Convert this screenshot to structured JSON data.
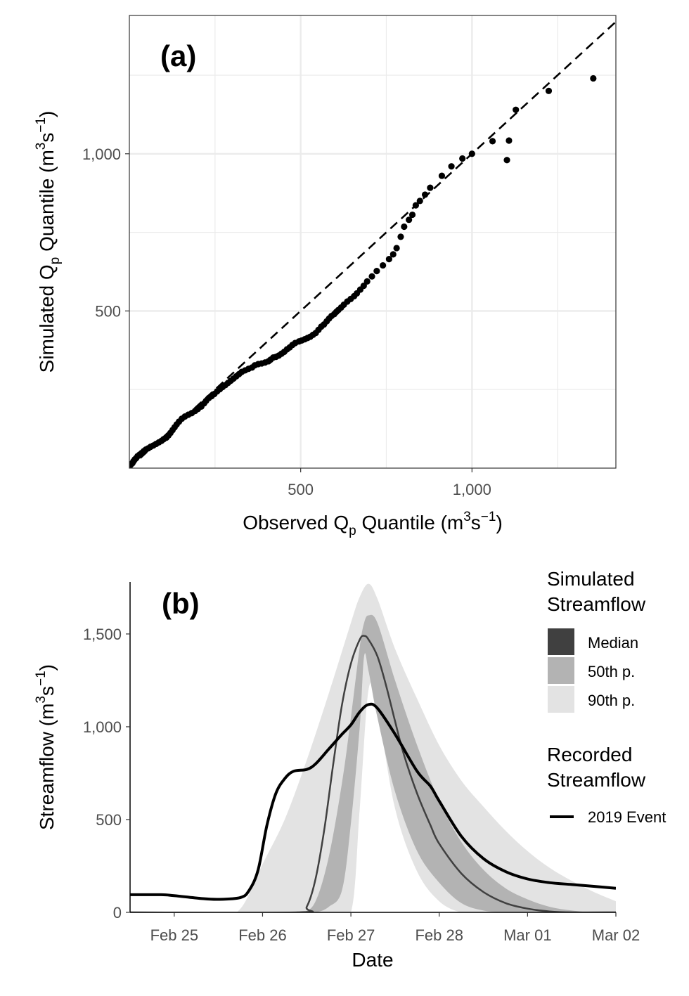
{
  "panel_a": {
    "label": "(a)",
    "xlabel": {
      "main": "Observed Q",
      "sub": "p",
      "rest": " Quantile (m",
      "sup1": "3",
      "s": "s",
      "sup2": "−1",
      "close": ")"
    },
    "ylabel": {
      "main": "Simulated Q",
      "sub": "p",
      "rest": " Quantile (m",
      "sup1": "3",
      "s": "s",
      "sup2": "−1",
      "close": ")"
    },
    "x_ticks": [
      "500",
      "1,000"
    ],
    "y_ticks": [
      "500",
      "1,000"
    ]
  },
  "panel_b": {
    "label": "(b)",
    "xlabel": "Date",
    "ylabel": {
      "main": "Streamflow (m",
      "sup1": "3",
      "s": "s",
      "sup2": "−1",
      "close": ")"
    },
    "x_ticks": [
      "Feb 25",
      "Feb 26",
      "Feb 27",
      "Feb 28",
      "Mar 01",
      "Mar 02"
    ],
    "y_ticks": [
      "0",
      "500",
      "1,000",
      "1,500"
    ]
  },
  "legend": {
    "sim_title_1": "Simulated",
    "sim_title_2": "Streamflow",
    "median": "Median",
    "p50": "50th p.",
    "p90": "90th p.",
    "rec_title_1": "Recorded",
    "rec_title_2": "Streamflow",
    "event": "2019 Event"
  },
  "colors": {
    "points": "#000000",
    "band_90": "#e3e3e3",
    "band_50": "#b3b3b3",
    "median_fill": "#404040",
    "recorded": "#000000",
    "grid": "#ebebeb"
  },
  "chart_data": [
    {
      "type": "scatter",
      "title": "(a)",
      "xlabel": "Observed Qp Quantile (m3s−1)",
      "ylabel": "Simulated Qp Quantile (m3s−1)",
      "xlim": [
        0,
        1420
      ],
      "ylim": [
        0,
        1440
      ],
      "grid": true,
      "reference_line": {
        "type": "1:1",
        "style": "dashed"
      },
      "points": [
        [
          2,
          8
        ],
        [
          5,
          12
        ],
        [
          9,
          16
        ],
        [
          12,
          22
        ],
        [
          16,
          28
        ],
        [
          20,
          32
        ],
        [
          24,
          38
        ],
        [
          30,
          43
        ],
        [
          36,
          48
        ],
        [
          42,
          54
        ],
        [
          48,
          59
        ],
        [
          55,
          63
        ],
        [
          62,
          68
        ],
        [
          70,
          72
        ],
        [
          78,
          77
        ],
        [
          86,
          82
        ],
        [
          94,
          87
        ],
        [
          100,
          92
        ],
        [
          108,
          97
        ],
        [
          114,
          104
        ],
        [
          120,
          112
        ],
        [
          126,
          121
        ],
        [
          132,
          130
        ],
        [
          138,
          139
        ],
        [
          145,
          148
        ],
        [
          153,
          157
        ],
        [
          162,
          164
        ],
        [
          172,
          170
        ],
        [
          182,
          175
        ],
        [
          192,
          182
        ],
        [
          200,
          188
        ],
        [
          210,
          196
        ],
        [
          218,
          206
        ],
        [
          224,
          214
        ],
        [
          232,
          223
        ],
        [
          240,
          229
        ],
        [
          248,
          236
        ],
        [
          256,
          244
        ],
        [
          264,
          251
        ],
        [
          272,
          258
        ],
        [
          280,
          264
        ],
        [
          288,
          271
        ],
        [
          296,
          278
        ],
        [
          304,
          285
        ],
        [
          312,
          292
        ],
        [
          320,
          299
        ],
        [
          328,
          306
        ],
        [
          338,
          311
        ],
        [
          348,
          316
        ],
        [
          358,
          320
        ],
        [
          366,
          327
        ],
        [
          376,
          331
        ],
        [
          386,
          333
        ],
        [
          396,
          336
        ],
        [
          406,
          340
        ],
        [
          412,
          345
        ],
        [
          420,
          352
        ],
        [
          428,
          354
        ],
        [
          436,
          358
        ],
        [
          444,
          364
        ],
        [
          452,
          370
        ],
        [
          460,
          378
        ],
        [
          468,
          384
        ],
        [
          476,
          392
        ],
        [
          484,
          398
        ],
        [
          495,
          403
        ],
        [
          503,
          406
        ],
        [
          512,
          410
        ],
        [
          520,
          414
        ],
        [
          528,
          418
        ],
        [
          536,
          424
        ],
        [
          544,
          430
        ],
        [
          552,
          440
        ],
        [
          560,
          450
        ],
        [
          568,
          457
        ],
        [
          576,
          467
        ],
        [
          583,
          476
        ],
        [
          590,
          484
        ],
        [
          598,
          490
        ],
        [
          604,
          497
        ],
        [
          610,
          503
        ],
        [
          618,
          511
        ],
        [
          626,
          520
        ],
        [
          636,
          530
        ],
        [
          646,
          538
        ],
        [
          656,
          547
        ],
        [
          664,
          556
        ],
        [
          674,
          568
        ],
        [
          684,
          580
        ],
        [
          694,
          594
        ],
        [
          708,
          610
        ],
        [
          722,
          627
        ],
        [
          740,
          645
        ],
        [
          758,
          665
        ],
        [
          770,
          680
        ],
        [
          780,
          700
        ],
        [
          792,
          736
        ],
        [
          802,
          768
        ],
        [
          816,
          790
        ],
        [
          826,
          806
        ],
        [
          836,
          836
        ],
        [
          848,
          850
        ],
        [
          863,
          870
        ],
        [
          878,
          892
        ],
        [
          912,
          930
        ],
        [
          940,
          960
        ],
        [
          972,
          985
        ],
        [
          1000,
          1000
        ],
        [
          1060,
          1040
        ],
        [
          1102,
          980
        ],
        [
          1108,
          1042
        ],
        [
          1128,
          1140
        ],
        [
          1224,
          1200
        ],
        [
          1354,
          1240
        ]
      ]
    },
    {
      "type": "area",
      "title": "(b)",
      "xlabel": "Date",
      "ylabel": "Streamflow (m3s−1)",
      "x_unit": "days (fractional day-of-month, Feb 2019)",
      "xlim": [
        24.5,
        30.0
      ],
      "ylim": [
        0,
        1780
      ],
      "x_tick_labels": [
        "Feb 25",
        "Feb 26",
        "Feb 27",
        "Feb 28",
        "Mar 01",
        "Mar 02"
      ],
      "x_tick_values": [
        25.0,
        26.0,
        27.0,
        28.0,
        29.0,
        30.0
      ],
      "grid": false,
      "series": [
        {
          "name": "90th p.",
          "kind": "band",
          "x": [
            24.5,
            25.5,
            25.75,
            26.0,
            26.25,
            26.5,
            26.75,
            27.0,
            27.1,
            27.2,
            27.3,
            27.5,
            27.75,
            28.0,
            28.25,
            28.5,
            28.75,
            29.0,
            29.25,
            29.5,
            29.75,
            30.0
          ],
          "lower": [
            0,
            0,
            0,
            0,
            0,
            0,
            0,
            0,
            560,
            1200,
            1100,
            560,
            220,
            60,
            0,
            0,
            0,
            0,
            0,
            0,
            0,
            0
          ],
          "upper": [
            0,
            0,
            20,
            260,
            500,
            820,
            1180,
            1560,
            1700,
            1770,
            1690,
            1420,
            1150,
            900,
            710,
            570,
            440,
            330,
            240,
            170,
            110,
            60
          ]
        },
        {
          "name": "50th p.",
          "kind": "band",
          "x": [
            24.5,
            26.25,
            26.45,
            26.6,
            26.75,
            26.9,
            27.0,
            27.1,
            27.15,
            27.2,
            27.3,
            27.5,
            27.75,
            28.0,
            28.25,
            28.5,
            28.75,
            29.0,
            29.25,
            29.5,
            29.75,
            30.0
          ],
          "lower": [
            0,
            0,
            0,
            0,
            30,
            120,
            480,
            1000,
            1380,
            1300,
            1050,
            650,
            330,
            160,
            50,
            10,
            0,
            0,
            0,
            0,
            0,
            0
          ],
          "upper": [
            0,
            0,
            0,
            60,
            300,
            700,
            1050,
            1430,
            1560,
            1600,
            1560,
            1250,
            900,
            600,
            380,
            230,
            130,
            70,
            30,
            10,
            0,
            0
          ]
        },
        {
          "name": "Median",
          "kind": "line",
          "x": [
            24.5,
            26.4,
            26.5,
            26.6,
            26.7,
            26.8,
            26.9,
            27.0,
            27.1,
            27.15,
            27.2,
            27.3,
            27.4,
            27.5,
            27.6,
            27.75,
            27.9,
            28.0,
            28.25,
            28.5,
            28.75,
            29.0,
            29.25,
            29.5,
            30.0
          ],
          "y": [
            0,
            0,
            30,
            180,
            450,
            800,
            1120,
            1340,
            1470,
            1490,
            1470,
            1380,
            1220,
            1030,
            850,
            640,
            470,
            370,
            210,
            110,
            50,
            20,
            5,
            0,
            0
          ]
        },
        {
          "name": "2019 Event",
          "kind": "line",
          "x": [
            24.5,
            24.85,
            25.0,
            25.3,
            25.5,
            25.75,
            25.85,
            25.95,
            26.05,
            26.15,
            26.25,
            26.35,
            26.5,
            26.6,
            26.75,
            26.9,
            27.0,
            27.1,
            27.2,
            27.3,
            27.5,
            27.75,
            27.9,
            28.0,
            28.25,
            28.5,
            28.75,
            29.0,
            29.25,
            29.5,
            29.75,
            30.0
          ],
          "y": [
            95,
            95,
            90,
            75,
            70,
            80,
            120,
            230,
            470,
            640,
            720,
            760,
            770,
            800,
            880,
            960,
            1010,
            1080,
            1120,
            1100,
            960,
            760,
            680,
            600,
            410,
            290,
            220,
            180,
            160,
            150,
            140,
            130
          ]
        }
      ]
    }
  ]
}
